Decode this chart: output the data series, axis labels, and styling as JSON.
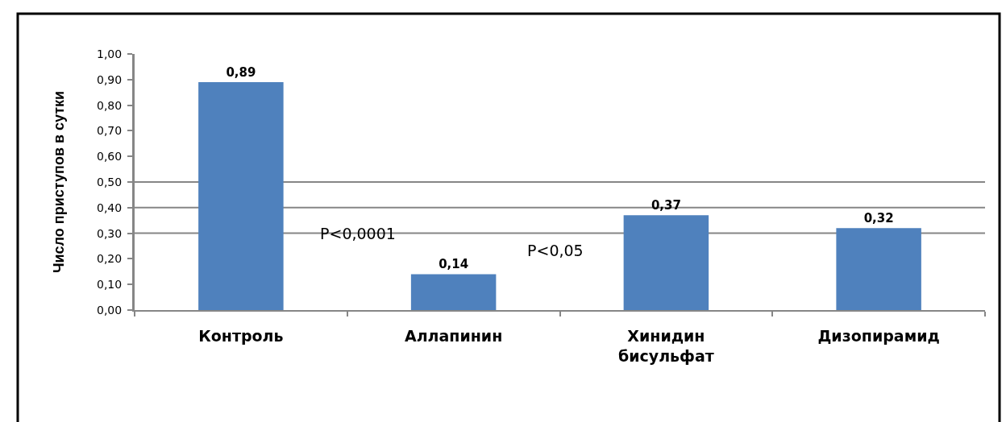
{
  "chart_data": {
    "type": "bar",
    "categories": [
      "Контроль",
      "Аллапинин",
      "Хинидин бисульфат",
      "Дизопирамид"
    ],
    "values": [
      0.89,
      0.14,
      0.37,
      0.32
    ],
    "value_labels": [
      "0,89",
      "0,14",
      "0,37",
      "0,32"
    ],
    "color": "#4f81bd",
    "ylabel": "Число приступов в сутки",
    "ylim": [
      0,
      1
    ],
    "yticks": [
      {
        "value": 0,
        "label": "0,00"
      },
      {
        "value": 0.1,
        "label": "0,10"
      },
      {
        "value": 0.2,
        "label": "0,20"
      },
      {
        "value": 0.3,
        "label": "0,30"
      },
      {
        "value": 0.4,
        "label": "0,40"
      },
      {
        "value": 0.5,
        "label": "0,50"
      },
      {
        "value": 0.6,
        "label": "0,60"
      },
      {
        "value": 0.7,
        "label": "0,70"
      },
      {
        "value": 0.8,
        "label": "0,80"
      },
      {
        "value": 0.9,
        "label": "0,90"
      },
      {
        "value": 1,
        "label": "1,00"
      }
    ],
    "grid": false,
    "ref_lines": [
      {
        "axis": "y",
        "value": 0.3,
        "color": "#868686"
      },
      {
        "axis": "y",
        "value": 0.4,
        "color": "#868686"
      },
      {
        "axis": "y",
        "value": 0.5,
        "color": "#868686"
      }
    ],
    "annotations": [
      "P<0,0001",
      "P<0,05"
    ]
  }
}
